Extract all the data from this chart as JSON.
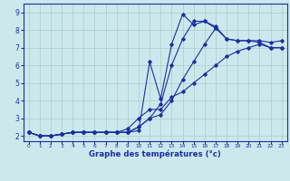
{
  "xlabel": "Graphe des températures (°c)",
  "xlim": [
    -0.5,
    23.5
  ],
  "ylim": [
    1.7,
    9.5
  ],
  "xticks": [
    0,
    1,
    2,
    3,
    4,
    5,
    6,
    7,
    8,
    9,
    10,
    11,
    12,
    13,
    14,
    15,
    16,
    17,
    18,
    19,
    20,
    21,
    22,
    23
  ],
  "yticks": [
    2,
    3,
    4,
    5,
    6,
    7,
    8,
    9
  ],
  "background_color": "#cce8ec",
  "grid_color": "#aacccc",
  "line_color": "#1a2fa0",
  "curves": [
    {
      "comment": "top spike curve - peaks at x=14 ~8.9, x=15 ~8.3, x=16 ~8.5",
      "x": [
        0,
        1,
        2,
        3,
        4,
        5,
        6,
        7,
        8,
        9,
        10,
        11,
        12,
        13,
        14,
        15,
        16,
        17,
        18,
        19,
        20,
        21,
        22,
        23
      ],
      "y": [
        2.2,
        2.0,
        2.0,
        2.1,
        2.2,
        2.2,
        2.2,
        2.2,
        2.2,
        2.2,
        2.3,
        6.2,
        4.1,
        7.2,
        8.9,
        8.3,
        8.5,
        8.1,
        null,
        null,
        null,
        null,
        null,
        null
      ]
    },
    {
      "comment": "second curve - peaks x=15 ~8.5, x=16 ~8.5, ends ~7.4 at 23",
      "x": [
        0,
        1,
        2,
        3,
        4,
        5,
        6,
        7,
        8,
        9,
        10,
        11,
        12,
        13,
        14,
        15,
        16,
        17,
        18,
        19,
        20,
        21,
        22,
        23
      ],
      "y": [
        2.2,
        2.0,
        2.0,
        2.1,
        2.2,
        2.2,
        2.2,
        2.2,
        2.2,
        2.2,
        2.5,
        3.0,
        3.8,
        6.0,
        7.5,
        8.5,
        8.5,
        8.2,
        7.5,
        7.4,
        7.4,
        7.4,
        7.3,
        7.4
      ]
    },
    {
      "x": [
        0,
        1,
        2,
        3,
        4,
        5,
        6,
        7,
        8,
        9,
        10,
        11,
        12,
        13,
        14,
        15,
        16,
        17,
        18,
        19,
        20,
        21,
        22,
        23
      ],
      "y": [
        2.2,
        2.0,
        2.0,
        2.1,
        2.2,
        2.2,
        2.2,
        2.2,
        2.2,
        2.2,
        2.5,
        3.0,
        3.2,
        4.0,
        5.2,
        6.2,
        7.2,
        8.1,
        7.5,
        7.4,
        7.4,
        7.3,
        7.0,
        7.0
      ]
    },
    {
      "x": [
        0,
        1,
        2,
        3,
        4,
        5,
        6,
        7,
        8,
        9,
        10,
        11,
        12,
        13,
        14,
        15,
        16,
        17,
        18,
        19,
        20,
        21,
        22,
        23
      ],
      "y": [
        2.2,
        2.0,
        2.0,
        2.1,
        2.2,
        2.2,
        2.2,
        2.2,
        2.2,
        2.4,
        3.0,
        3.5,
        3.5,
        4.2,
        4.5,
        5.0,
        5.5,
        6.0,
        6.5,
        6.8,
        7.0,
        7.2,
        7.0,
        7.0
      ]
    }
  ]
}
